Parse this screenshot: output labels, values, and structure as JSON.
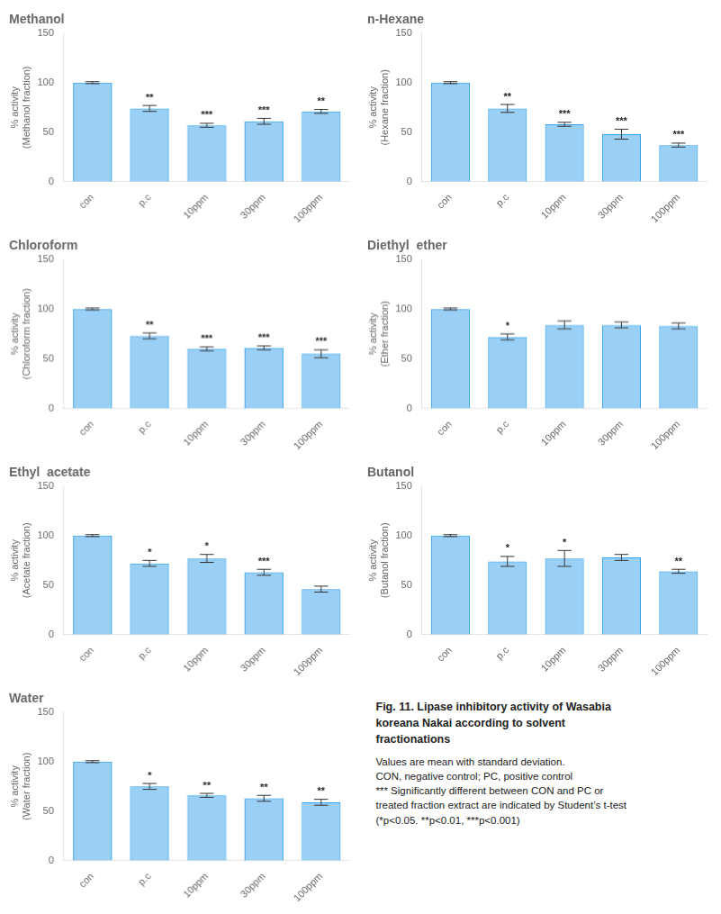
{
  "chart_data": [
    {
      "type": "bar",
      "title": "Methanol",
      "ylabel": "% activity\n(Methanol fraction)",
      "categories": [
        "con",
        "p.c",
        "10ppm",
        "30ppm",
        "100ppm"
      ],
      "values": [
        100,
        74,
        57,
        61,
        71
      ],
      "errors": [
        1,
        3,
        2,
        3,
        2
      ],
      "significance": [
        null,
        "**",
        "***",
        "***",
        "**"
      ],
      "ylim": [
        0,
        150
      ],
      "yticks": [
        0,
        50,
        100,
        150
      ],
      "grid": false
    },
    {
      "type": "bar",
      "title": "n-Hexane",
      "ylabel": "% activity\n(Hexane fraction)",
      "categories": [
        "con",
        "p.c",
        "10ppm",
        "30ppm",
        "100ppm"
      ],
      "values": [
        100,
        74,
        58,
        48,
        37
      ],
      "errors": [
        1,
        4,
        2,
        5,
        2
      ],
      "significance": [
        null,
        "**",
        "***",
        "***",
        "***"
      ],
      "ylim": [
        0,
        150
      ],
      "yticks": [
        0,
        50,
        100,
        150
      ],
      "grid": false
    },
    {
      "type": "bar",
      "title": "Chloroform",
      "ylabel": "% activity\n(Chloroform fraction)",
      "categories": [
        "con",
        "p.c",
        "10ppm",
        "30ppm",
        "100ppm"
      ],
      "values": [
        100,
        73,
        60,
        61,
        55
      ],
      "errors": [
        1,
        3,
        2,
        2,
        4
      ],
      "significance": [
        null,
        "**",
        "***",
        "***",
        "***"
      ],
      "ylim": [
        0,
        150
      ],
      "yticks": [
        0,
        50,
        100,
        150
      ],
      "grid": false
    },
    {
      "type": "bar",
      "title": "Diethyl  ether",
      "ylabel": "% activity\n(Ether fraction)",
      "categories": [
        "con",
        "p.c",
        "10ppm",
        "30ppm",
        "100ppm"
      ],
      "values": [
        100,
        72,
        84,
        84,
        83
      ],
      "errors": [
        1,
        3,
        4,
        3,
        3
      ],
      "significance": [
        null,
        "*",
        null,
        null,
        null
      ],
      "ylim": [
        0,
        150
      ],
      "yticks": [
        0,
        50,
        100,
        150
      ],
      "grid": false
    },
    {
      "type": "bar",
      "title": "Ethyl  acetate",
      "ylabel": "% activity\n(Acetate fraction)",
      "categories": [
        "con",
        "p.c",
        "10ppm",
        "30ppm",
        "100ppm"
      ],
      "values": [
        100,
        72,
        77,
        63,
        46
      ],
      "errors": [
        1,
        3,
        4,
        3,
        3
      ],
      "significance": [
        null,
        "*",
        "*",
        "***",
        null
      ],
      "ylim": [
        0,
        150
      ],
      "yticks": [
        0,
        50,
        100,
        150
      ],
      "grid": false
    },
    {
      "type": "bar",
      "title": "Butanol",
      "ylabel": "% activity\n(Butanol fraction)",
      "categories": [
        "con",
        "p.c",
        "10ppm",
        "30ppm",
        "100ppm"
      ],
      "values": [
        100,
        74,
        77,
        78,
        64
      ],
      "errors": [
        1,
        5,
        8,
        3,
        2
      ],
      "significance": [
        null,
        "*",
        "*",
        null,
        "**"
      ],
      "ylim": [
        0,
        150
      ],
      "yticks": [
        0,
        50,
        100,
        150
      ],
      "grid": false
    },
    {
      "type": "bar",
      "title": "Water",
      "ylabel": "% activity\n(Water fraction)",
      "categories": [
        "con",
        "p.c",
        "10ppm",
        "30ppm",
        "100ppm"
      ],
      "values": [
        100,
        75,
        66,
        63,
        59
      ],
      "errors": [
        1,
        3,
        2,
        3,
        3
      ],
      "significance": [
        null,
        "*",
        "**",
        "**",
        "**"
      ],
      "ylim": [
        0,
        150
      ],
      "yticks": [
        0,
        50,
        100,
        150
      ],
      "grid": false
    }
  ],
  "caption": {
    "title": [
      "Fig. 11.  Lipase inhibitory activity of Wasabia",
      "koreana  Nakai  according to solvent",
      "fractionations"
    ],
    "lines": [
      "Values are mean with standard deviation.",
      "CON, negative control; PC, positive control",
      "***  Significantly different between CON and PC or",
      "treated fraction extract are indicated by Student’s t-test",
      "(*p<0.05.  **p<0.01,  ***p<0.001)"
    ]
  }
}
